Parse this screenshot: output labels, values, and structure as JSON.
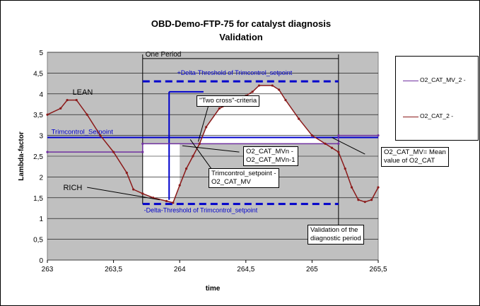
{
  "chart_data": {
    "type": "line",
    "title": "OBD-Demo-FTP-75 for catalyst diagnosis",
    "subtitle": "Validation",
    "xlabel": "time",
    "ylabel": "Lambda-factor",
    "xlim": [
      263,
      265.5
    ],
    "ylim": [
      0,
      5
    ],
    "x_ticks": [
      "263",
      "263,5",
      "264",
      "264,5",
      "265",
      "265,5"
    ],
    "y_ticks": [
      "0",
      "0,5",
      "1",
      "1,5",
      "2",
      "2,5",
      "3",
      "3,5",
      "4",
      "4,5",
      "5"
    ],
    "grid": true,
    "legend_position": "right",
    "colors": {
      "mv": "#7030a0",
      "raw": "#8b1a1a",
      "threshold": "#0000cc",
      "plot_bg": "#c0c0c0"
    },
    "series": [
      {
        "name": "O2_CAT_MV_2 -",
        "color": "#7030a0",
        "x": [
          263.0,
          263.72,
          263.72,
          265.2,
          265.2,
          265.5
        ],
        "y": [
          2.6,
          2.6,
          2.8,
          2.8,
          3.0,
          3.0
        ]
      },
      {
        "name": "O2_CAT_2 -",
        "color": "#8b1a1a",
        "x": [
          263.0,
          263.1,
          263.15,
          263.22,
          263.3,
          263.4,
          263.5,
          263.6,
          263.65,
          263.72,
          263.8,
          263.9,
          263.95,
          264.0,
          264.05,
          264.1,
          264.15,
          264.2,
          264.3,
          264.4,
          264.5,
          264.55,
          264.6,
          264.7,
          264.75,
          264.8,
          264.9,
          265.0,
          265.1,
          265.15,
          265.2,
          265.25,
          265.3,
          265.35,
          265.4,
          265.45,
          265.5
        ],
        "y": [
          3.5,
          3.65,
          3.85,
          3.85,
          3.5,
          3.0,
          2.6,
          2.1,
          1.7,
          1.6,
          1.5,
          1.42,
          1.38,
          1.8,
          2.2,
          2.5,
          2.8,
          3.2,
          3.65,
          3.8,
          3.95,
          4.05,
          4.2,
          4.2,
          4.1,
          3.85,
          3.4,
          3.0,
          2.8,
          2.7,
          2.6,
          2.2,
          1.75,
          1.45,
          1.4,
          1.45,
          1.75
        ]
      }
    ],
    "reference_lines": [
      {
        "label": "+Delta-Threshold of Trimcontrol_setpoint",
        "y": 4.3,
        "x_range": [
          263.72,
          265.2
        ],
        "style": "dashed"
      },
      {
        "label": "Trimcontrol_Setpoint",
        "y": 2.95,
        "x_range": [
          263.0,
          265.5
        ],
        "style": "solid"
      },
      {
        "label": "-Delta-Threshold of Trimcontrol_setpoint",
        "y": 1.35,
        "x_range": [
          263.72,
          265.2
        ],
        "style": "dashed"
      }
    ],
    "annotations": {
      "one_period": "One Period",
      "lean": "LEAN",
      "rich": "RICH",
      "two_cross": "\"Two cross\"-criteria",
      "diff": "O2_CAT_MVn -\nO2_CAT_MVn-1",
      "trim_minus_mv": "Trimcontrol_setpoint -\nO2_CAT_MV",
      "mv_def": "O2_CAT_MV= Mean\nvalue of O2_CAT",
      "validation": "Validation of the\ndiagnostic period"
    }
  }
}
